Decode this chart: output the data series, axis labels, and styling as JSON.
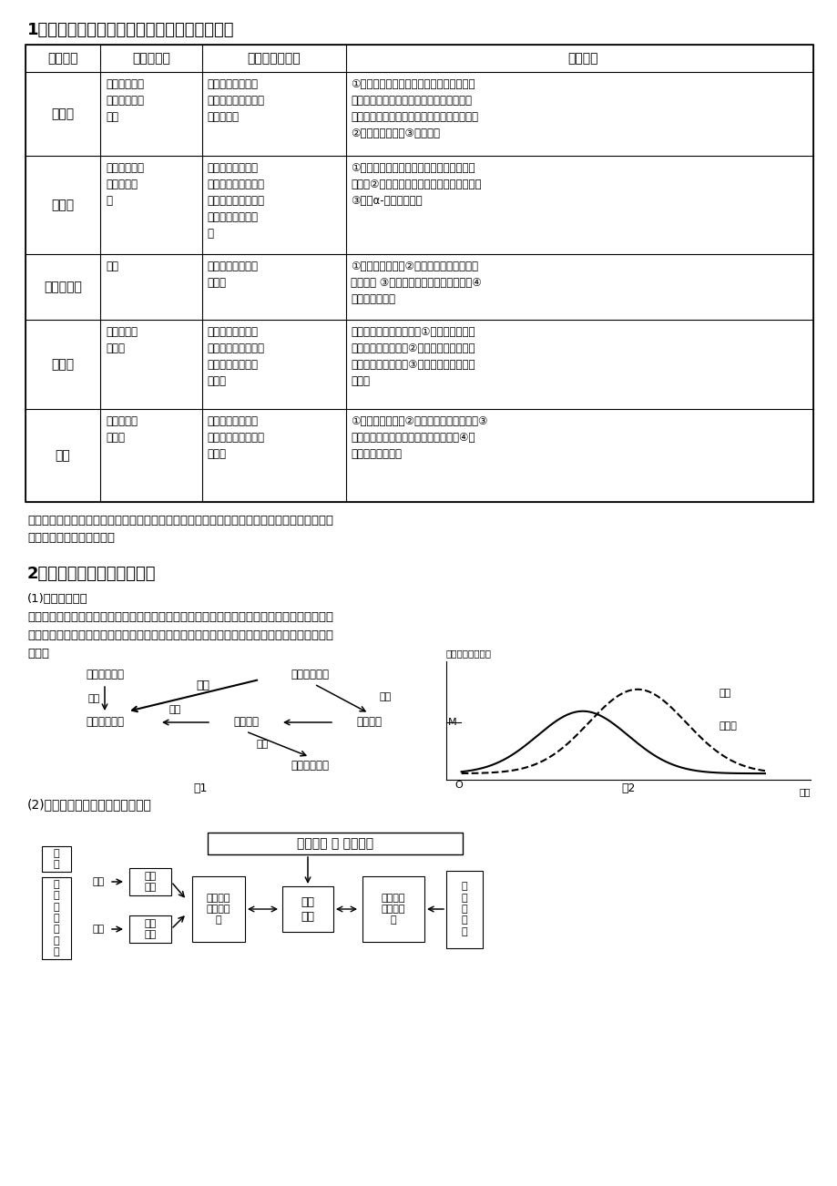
{
  "title1": "1、各种植物激素的合成部位、分布及生理功能",
  "table_headers": [
    "激素名称",
    "合成的部位",
    "存在较多的部位",
    "生理功能"
  ],
  "table_rows": [
    [
      "生长素",
      "幼嫩的芽、嫩\n叶、发育中的\n种子",
      "在各器官中都有分\n布，大多集中在生长\n旺盛的部位",
      "①生长素的作用表现出两重性：既能促进生\n长，也能抑制生长；既能促进发芽，也能抑\n制发芽；既能防止落花落果，也能疏花疏果；\n②促进子房发育；③促进生根"
    ],
    [
      "赤霉素",
      "幼芽、幼根和\n未成熟的种\n子",
      "普遍存在于植物体\n内，主要分布于未成\n熟的种子、幼芽、幼\n根等幼嫩组织和器\n官",
      "①促进细胞伸长，从而引起茎秆伸长和植株\n增高；②解除种子、块茎的休眠并促进萌发；\n③诱导α-淀粉酶的形成"
    ],
    [
      "细胞分裂素",
      "根尖",
      "正在进行细胞分裂\n的部位",
      "①促进细胞分裂；②诱导芽的分化，延缓叶\n片的衰老 ③解除顶端优势，促进侧芽生长④\n促进气孔的开放"
    ],
    [
      "脱落酸",
      "根冠和萎蔫\n的叶片",
      "普遍存在于植物体\n内，将要脱落和进入\n休眠的器官和组织\n中较多",
      "是最重要的生长抑制剂，①能抑制植物细胞\n的分裂和种子萌发；②促进休眠、促进叶和\n果实的衰老和脱落；③引起气孔关闭，增加\n抗逆性"
    ],
    [
      "乙烯",
      "植物体的各\n个部位",
      "广泛存在于植物体\n内，成熟的果实中含\n量最多",
      "①促进果实成熟；②促进叶片和果实脱落；③\n促进气孔关闭；促进侧芽、块茎休眠；④促\n进开花和雌花分化"
    ]
  ],
  "note_text": "注意：生长素、赤霉素、细胞分裂素这三类是促进生长发育的物质，脱落酸、乙烯这两类则是抑\n制生长，促进成熟的物质。",
  "title2": "2、各植物激素间的相互作用",
  "subtitle1": "(1)生长素与乙烯",
  "para1": "生长素的浓度接近或等于生长最适浓度时，就开始诱导乙烯的形成，超过这一点时，乙烯的产量\n就明显增加，而当乙烯对细胞生长的抑制作用超过了生长素促进细胞生长的作用时，细胞会横向\n扩大。",
  "subtitle2": "(2)多种植物激素与植物生长的关系",
  "bg_color": "#ffffff",
  "text_color": "#000000"
}
